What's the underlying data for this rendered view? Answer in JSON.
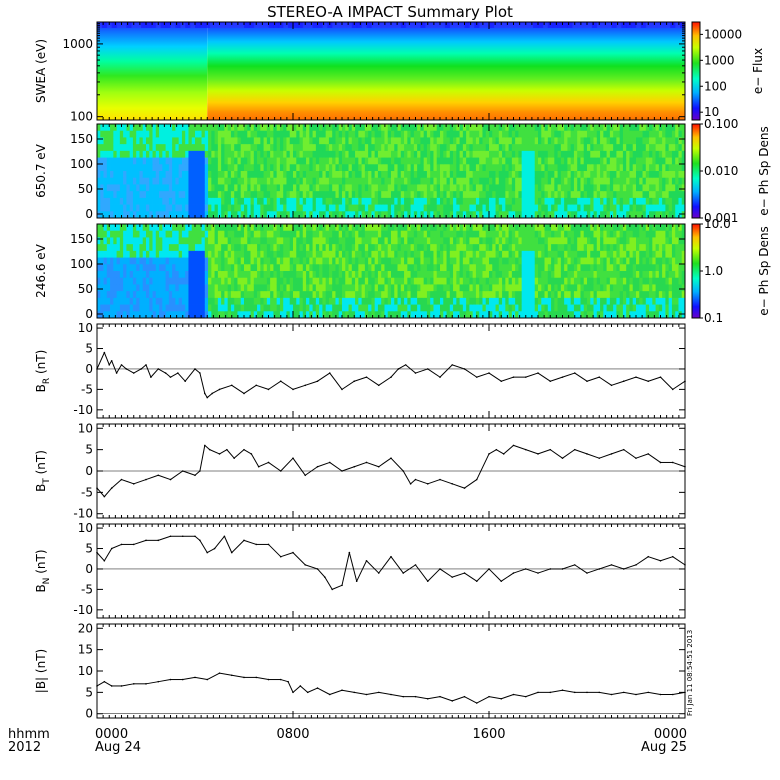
{
  "title": "STEREO-A IMPACT Summary Plot",
  "timestamp": "Fri Jan 11 08:54:51 2013",
  "x_axis": {
    "label_line1": "hhmm",
    "label_line2": "2012",
    "ticks": [
      {
        "hour": 0,
        "time": "0000",
        "date": "Aug 24"
      },
      {
        "hour": 8,
        "time": "0800",
        "date": ""
      },
      {
        "hour": 16,
        "time": "1600",
        "date": ""
      },
      {
        "hour": 24,
        "time": "0000",
        "date": "Aug 25"
      }
    ],
    "range_hours": [
      0,
      24
    ]
  },
  "chart_data": [
    {
      "type": "heatmap",
      "ylabel": "SWEA (eV)",
      "yscale": "log",
      "ylim": [
        90,
        2000
      ],
      "yticks": [
        {
          "v": 100,
          "label": "100"
        },
        {
          "v": 1000,
          "label": "1000"
        }
      ],
      "colorbar": {
        "label": "e− Flux",
        "scale": "log",
        "range": [
          5,
          30000
        ],
        "ticks": [
          {
            "v": 10,
            "label": "10"
          },
          {
            "v": 100,
            "label": "100"
          },
          {
            "v": 1000,
            "label": "1000"
          },
          {
            "v": 10000,
            "label": "10000"
          }
        ]
      }
    },
    {
      "type": "heatmap",
      "ylabel": "650.7 eV",
      "ylim": [
        -8,
        180
      ],
      "yticks": [
        {
          "v": 0,
          "label": "0"
        },
        {
          "v": 50,
          "label": "50"
        },
        {
          "v": 100,
          "label": "100"
        },
        {
          "v": 150,
          "label": "150"
        }
      ],
      "colorbar": {
        "label": "e− Ph Sp Dens",
        "scale": "log",
        "range": [
          0.001,
          0.1
        ],
        "ticks": [
          {
            "v": 0.001,
            "label": "0.001"
          },
          {
            "v": 0.01,
            "label": "0.010"
          },
          {
            "v": 0.1,
            "label": "0.100"
          }
        ]
      }
    },
    {
      "type": "heatmap",
      "ylabel": "246.6 eV",
      "ylim": [
        -8,
        180
      ],
      "yticks": [
        {
          "v": 0,
          "label": "0"
        },
        {
          "v": 50,
          "label": "50"
        },
        {
          "v": 100,
          "label": "100"
        },
        {
          "v": 150,
          "label": "150"
        }
      ],
      "colorbar": {
        "label": "e− Ph Sp Dens",
        "scale": "log",
        "range": [
          0.1,
          10
        ],
        "ticks": [
          {
            "v": 0.1,
            "label": "0.1"
          },
          {
            "v": 1,
            "label": "1.0"
          },
          {
            "v": 10,
            "label": "10.0"
          }
        ]
      }
    },
    {
      "type": "line",
      "ylabel_main": "B",
      "ylabel_sub": "R",
      "ylabel_unit": " (nT)",
      "ylim": [
        -12,
        11
      ],
      "yticks": [
        -10,
        -5,
        0,
        5,
        10
      ],
      "x": [
        0,
        0.3,
        0.5,
        0.6,
        0.8,
        1.0,
        1.2,
        1.5,
        1.8,
        2.0,
        2.2,
        2.5,
        2.8,
        3.0,
        3.3,
        3.6,
        4.0,
        4.2,
        4.4,
        4.5,
        4.7,
        5.0,
        5.5,
        6.0,
        6.5,
        7.0,
        7.5,
        8.0,
        8.5,
        9.0,
        9.5,
        10.0,
        10.5,
        11.0,
        11.5,
        12.0,
        12.3,
        12.6,
        13.0,
        13.5,
        14.0,
        14.5,
        15.0,
        15.5,
        16.0,
        16.5,
        17.0,
        17.5,
        18.0,
        18.5,
        19.0,
        19.5,
        20.0,
        20.5,
        21.0,
        21.5,
        22.0,
        22.5,
        23.0,
        23.5,
        24.0
      ],
      "y": [
        0,
        4,
        1,
        2,
        -1,
        1,
        0,
        -1,
        0,
        1,
        -2,
        0,
        -1,
        -2,
        -1,
        -3,
        0,
        -1,
        -6,
        -7,
        -6,
        -5,
        -4,
        -6,
        -4,
        -5,
        -3,
        -5,
        -4,
        -3,
        -1,
        -5,
        -3,
        -2,
        -4,
        -2,
        0,
        1,
        -1,
        0,
        -2,
        1,
        0,
        -2,
        -1,
        -3,
        -2,
        -2,
        -1,
        -3,
        -2,
        -1,
        -3,
        -2,
        -4,
        -3,
        -2,
        -3,
        -2,
        -5,
        -3
      ]
    },
    {
      "type": "line",
      "ylabel_main": "B",
      "ylabel_sub": "T",
      "ylabel_unit": " (nT)",
      "ylim": [
        -11,
        11
      ],
      "yticks": [
        -10,
        -5,
        0,
        5,
        10
      ],
      "x": [
        0,
        0.3,
        0.6,
        1.0,
        1.5,
        2.0,
        2.5,
        3.0,
        3.5,
        4.0,
        4.2,
        4.4,
        4.6,
        5.0,
        5.3,
        5.6,
        6.0,
        6.3,
        6.6,
        7.0,
        7.5,
        8.0,
        8.5,
        9.0,
        9.5,
        10.0,
        10.5,
        11.0,
        11.5,
        12.0,
        12.5,
        12.8,
        13.0,
        13.5,
        14.0,
        14.5,
        15.0,
        15.5,
        16.0,
        16.3,
        16.6,
        17.0,
        17.5,
        18.0,
        18.5,
        19.0,
        19.5,
        20.0,
        20.5,
        21.0,
        21.5,
        22.0,
        22.5,
        23.0,
        23.5,
        24.0
      ],
      "y": [
        -4,
        -6,
        -4,
        -2,
        -3,
        -2,
        -1,
        -2,
        0,
        -1,
        0,
        6,
        5,
        4,
        5,
        3,
        5,
        4,
        1,
        2,
        0,
        3,
        -1,
        1,
        2,
        0,
        1,
        2,
        1,
        3,
        0,
        -3,
        -2,
        -3,
        -2,
        -3,
        -4,
        -2,
        4,
        5,
        4,
        6,
        5,
        4,
        5,
        3,
        5,
        4,
        3,
        4,
        5,
        3,
        4,
        2,
        2,
        1
      ]
    },
    {
      "type": "line",
      "ylabel_main": "B",
      "ylabel_sub": "N",
      "ylabel_unit": " (nT)",
      "ylim": [
        -12,
        11
      ],
      "yticks": [
        -10,
        -5,
        0,
        5,
        10
      ],
      "x": [
        0,
        0.3,
        0.6,
        1.0,
        1.5,
        2.0,
        2.5,
        3.0,
        3.5,
        4.0,
        4.2,
        4.5,
        4.8,
        5.2,
        5.5,
        6.0,
        6.5,
        7.0,
        7.5,
        8.0,
        8.5,
        9.0,
        9.3,
        9.6,
        10.0,
        10.3,
        10.6,
        11.0,
        11.5,
        12.0,
        12.5,
        13.0,
        13.5,
        14.0,
        14.5,
        15.0,
        15.5,
        16.0,
        16.5,
        17.0,
        17.5,
        18.0,
        18.5,
        19.0,
        19.5,
        20.0,
        20.5,
        21.0,
        21.5,
        22.0,
        22.5,
        23.0,
        23.5,
        24.0
      ],
      "y": [
        4,
        2,
        5,
        6,
        6,
        7,
        7,
        8,
        8,
        8,
        7,
        4,
        5,
        8,
        4,
        7,
        6,
        6,
        3,
        4,
        1,
        0,
        -2,
        -5,
        -4,
        4,
        -3,
        2,
        -1,
        3,
        -1,
        1,
        -3,
        0,
        -2,
        -1,
        -3,
        0,
        -3,
        -1,
        0,
        -1,
        0,
        0,
        1,
        -1,
        0,
        1,
        0,
        1,
        3,
        2,
        3,
        1
      ]
    },
    {
      "type": "line",
      "ylabel_main": "|B|",
      "ylabel_sub": "",
      "ylabel_unit": " (nT)",
      "ylim": [
        -1,
        21
      ],
      "yticks": [
        0,
        5,
        10,
        15,
        20
      ],
      "x": [
        0,
        0.3,
        0.6,
        1.0,
        1.5,
        2.0,
        2.5,
        3.0,
        3.5,
        4.0,
        4.5,
        5.0,
        5.5,
        6.0,
        6.5,
        7.0,
        7.5,
        7.8,
        8.0,
        8.3,
        8.6,
        9.0,
        9.5,
        10.0,
        10.5,
        11.0,
        11.5,
        12.0,
        12.5,
        13.0,
        13.5,
        14.0,
        14.5,
        15.0,
        15.5,
        16.0,
        16.5,
        17.0,
        17.5,
        18.0,
        18.5,
        19.0,
        19.5,
        20.0,
        20.5,
        21.0,
        21.5,
        22.0,
        22.5,
        23.0,
        23.5,
        24.0
      ],
      "y": [
        6.5,
        7.5,
        6.5,
        6.5,
        7,
        7,
        7.5,
        8,
        8,
        8.5,
        8,
        9.5,
        9,
        8.5,
        8.5,
        8,
        8,
        7.5,
        5,
        6.5,
        5,
        6,
        4.5,
        5.5,
        5,
        4.5,
        5,
        4.5,
        4,
        4,
        3.5,
        4,
        3,
        4,
        2.5,
        4,
        3.5,
        4.5,
        4,
        5,
        5,
        5.5,
        5,
        5,
        5,
        4.5,
        5,
        4.5,
        5,
        4.5,
        4.5,
        5
      ]
    }
  ]
}
